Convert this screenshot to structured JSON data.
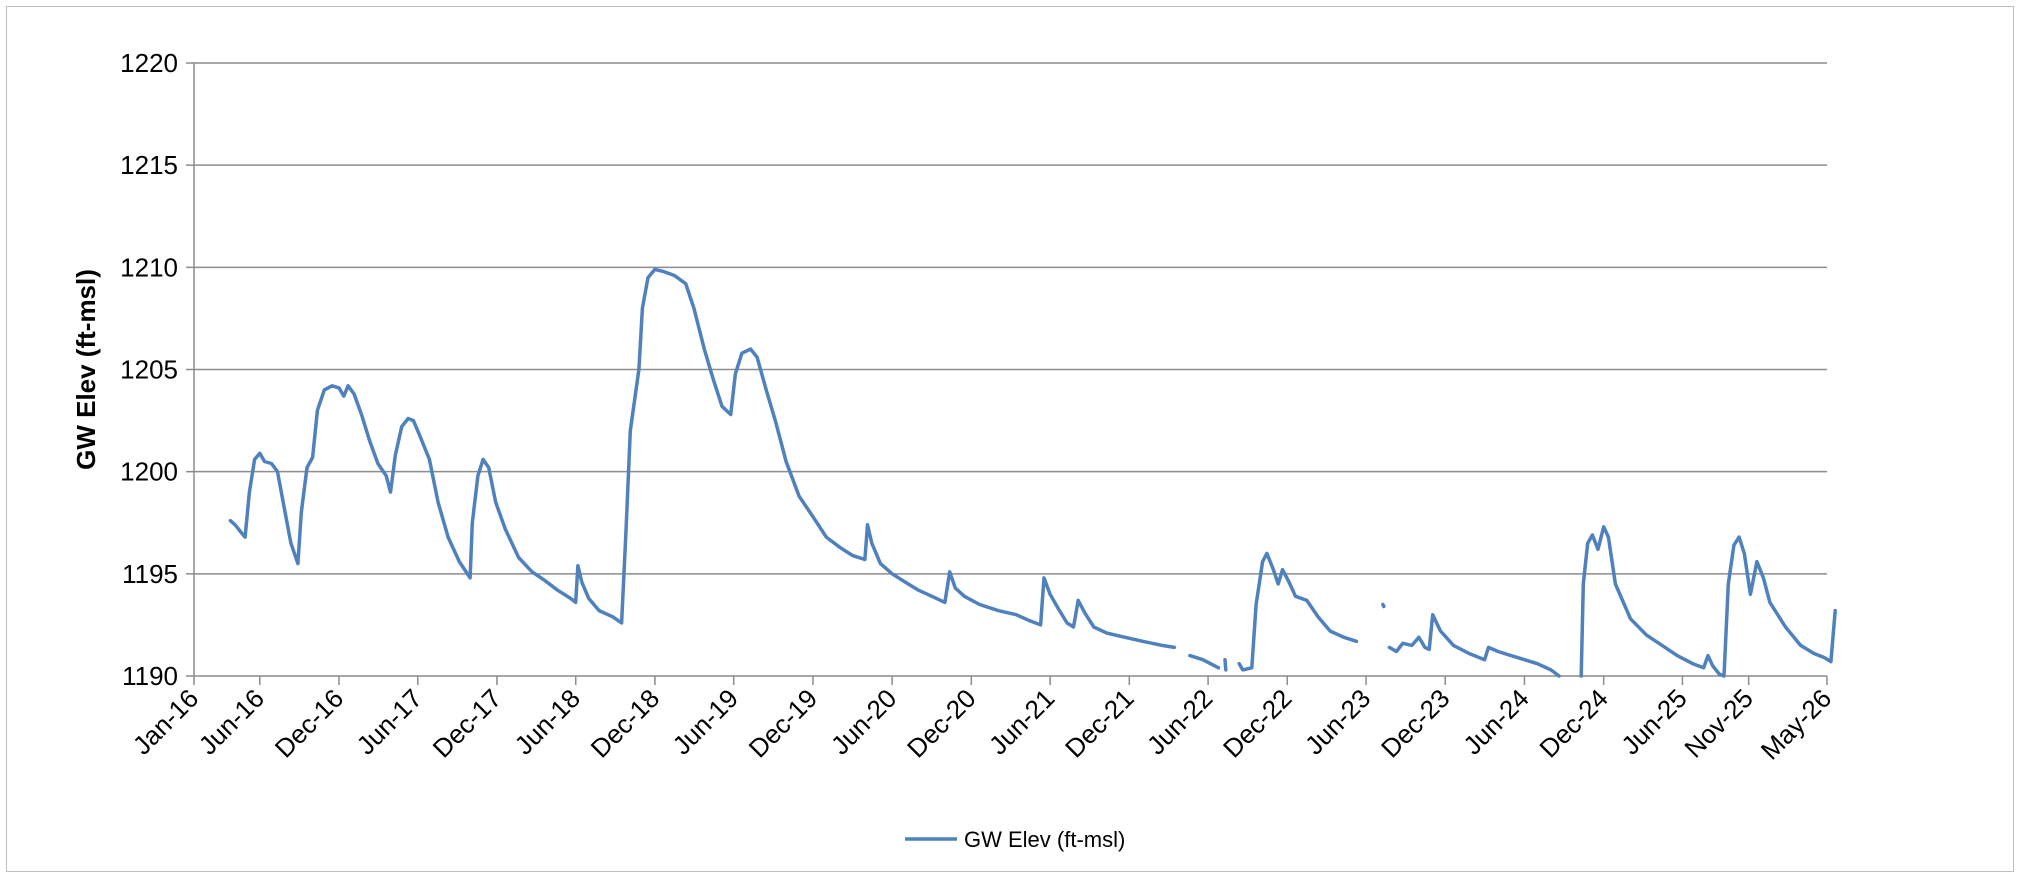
{
  "chart_data": {
    "type": "line",
    "title": "",
    "xlabel": "",
    "ylabel": "GW Elev (ft-msl)",
    "ylim": [
      1190,
      1220
    ],
    "yticks": [
      1190,
      1195,
      1200,
      1205,
      1210,
      1215,
      1220
    ],
    "xlim": [
      "2016-01-01",
      "2026-05-01"
    ],
    "xticks": [
      "2016-01-01",
      "2016-06-01",
      "2016-12-01",
      "2017-06-01",
      "2017-12-01",
      "2018-06-01",
      "2018-12-01",
      "2019-06-01",
      "2019-12-01",
      "2020-06-01",
      "2020-12-01",
      "2021-06-01",
      "2021-12-01",
      "2022-06-01",
      "2022-12-01",
      "2023-06-01",
      "2023-12-01",
      "2024-06-01",
      "2024-12-01",
      "2025-06-01",
      "2025-11-01",
      "2026-05-01"
    ],
    "xtick_labels": [
      "Jan-16",
      "Jun-16",
      "Dec-16",
      "Jun-17",
      "Dec-17",
      "Jun-18",
      "Dec-18",
      "Jun-19",
      "Dec-19",
      "Jun-20",
      "Dec-20",
      "Jun-21",
      "Dec-21",
      "Jun-22",
      "Dec-22",
      "Jun-23",
      "Dec-23",
      "Jun-24",
      "Dec-24",
      "Jun-25",
      "Nov-25",
      "May-26"
    ],
    "grid": true,
    "legend_position": "bottom",
    "color": "#4f81bd",
    "series": [
      {
        "name": "GW Elev (ft-msl)",
        "segments": [
          [
            [
              "2016-03-25",
              1197.6
            ],
            [
              "2016-04-05",
              1197.4
            ],
            [
              "2016-04-20",
              1197.0
            ],
            [
              "2016-04-28",
              1196.8
            ],
            [
              "2016-05-08",
              1199.0
            ],
            [
              "2016-05-20",
              1200.6
            ],
            [
              "2016-06-01",
              1200.9
            ],
            [
              "2016-06-12",
              1200.5
            ],
            [
              "2016-06-28",
              1200.4
            ],
            [
              "2016-07-12",
              1200.0
            ],
            [
              "2016-07-25",
              1198.5
            ],
            [
              "2016-08-12",
              1196.5
            ],
            [
              "2016-08-28",
              1195.5
            ],
            [
              "2016-09-05",
              1198.0
            ],
            [
              "2016-09-18",
              1200.2
            ],
            [
              "2016-10-01",
              1200.7
            ],
            [
              "2016-10-12",
              1203.0
            ],
            [
              "2016-10-28",
              1204.0
            ],
            [
              "2016-11-15",
              1204.2
            ],
            [
              "2016-12-01",
              1204.1
            ],
            [
              "2016-12-12",
              1203.7
            ],
            [
              "2016-12-22",
              1204.2
            ],
            [
              "2017-01-05",
              1203.8
            ],
            [
              "2017-01-22",
              1202.8
            ],
            [
              "2017-02-10",
              1201.5
            ],
            [
              "2017-03-01",
              1200.4
            ],
            [
              "2017-03-20",
              1199.8
            ],
            [
              "2017-03-30",
              1199.0
            ],
            [
              "2017-04-10",
              1200.8
            ],
            [
              "2017-04-25",
              1202.2
            ],
            [
              "2017-05-10",
              1202.6
            ],
            [
              "2017-05-22",
              1202.5
            ],
            [
              "2017-06-05",
              1201.8
            ],
            [
              "2017-06-28",
              1200.6
            ],
            [
              "2017-07-18",
              1198.5
            ],
            [
              "2017-08-10",
              1196.8
            ],
            [
              "2017-09-05",
              1195.6
            ],
            [
              "2017-09-30",
              1194.8
            ],
            [
              "2017-10-05",
              1197.5
            ],
            [
              "2017-10-18",
              1199.8
            ],
            [
              "2017-10-30",
              1200.6
            ],
            [
              "2017-11-12",
              1200.2
            ],
            [
              "2017-11-28",
              1198.5
            ],
            [
              "2017-12-20",
              1197.2
            ],
            [
              "2018-01-20",
              1195.8
            ],
            [
              "2018-02-20",
              1195.1
            ],
            [
              "2018-03-20",
              1194.7
            ],
            [
              "2018-04-20",
              1194.2
            ],
            [
              "2018-05-20",
              1193.8
            ],
            [
              "2018-06-01",
              1193.6
            ],
            [
              "2018-06-06",
              1195.4
            ],
            [
              "2018-06-15",
              1194.6
            ],
            [
              "2018-07-01",
              1193.8
            ],
            [
              "2018-07-25",
              1193.2
            ],
            [
              "2018-08-25",
              1192.9
            ],
            [
              "2018-09-15",
              1192.6
            ],
            [
              "2018-09-25",
              1197.0
            ],
            [
              "2018-10-05",
              1202.0
            ],
            [
              "2018-10-15",
              1203.5
            ],
            [
              "2018-10-25",
              1205.0
            ],
            [
              "2018-11-02",
              1208.0
            ],
            [
              "2018-11-15",
              1209.5
            ],
            [
              "2018-12-01",
              1209.9
            ],
            [
              "2018-12-20",
              1209.8
            ],
            [
              "2019-01-15",
              1209.6
            ],
            [
              "2019-02-10",
              1209.2
            ],
            [
              "2019-03-01",
              1208.0
            ],
            [
              "2019-03-25",
              1206.0
            ],
            [
              "2019-04-15",
              1204.5
            ],
            [
              "2019-05-05",
              1203.2
            ],
            [
              "2019-05-25",
              1202.8
            ],
            [
              "2019-06-05",
              1204.8
            ],
            [
              "2019-06-20",
              1205.8
            ],
            [
              "2019-07-10",
              1206.0
            ],
            [
              "2019-07-25",
              1205.6
            ],
            [
              "2019-08-15",
              1204.0
            ],
            [
              "2019-09-05",
              1202.5
            ],
            [
              "2019-09-30",
              1200.5
            ],
            [
              "2019-10-30",
              1198.8
            ],
            [
              "2019-12-01",
              1197.8
            ],
            [
              "2020-01-01",
              1196.8
            ],
            [
              "2020-02-01",
              1196.3
            ],
            [
              "2020-03-01",
              1195.9
            ],
            [
              "2020-03-30",
              1195.7
            ],
            [
              "2020-04-05",
              1197.4
            ],
            [
              "2020-04-15",
              1196.5
            ],
            [
              "2020-05-05",
              1195.5
            ],
            [
              "2020-06-01",
              1195.0
            ],
            [
              "2020-07-01",
              1194.6
            ],
            [
              "2020-08-01",
              1194.2
            ],
            [
              "2020-09-01",
              1193.9
            ],
            [
              "2020-10-01",
              1193.6
            ],
            [
              "2020-10-12",
              1195.1
            ],
            [
              "2020-10-25",
              1194.3
            ],
            [
              "2020-11-15",
              1193.9
            ],
            [
              "2020-12-20",
              1193.5
            ],
            [
              "2021-02-01",
              1193.2
            ],
            [
              "2021-03-15",
              1193.0
            ],
            [
              "2021-04-15",
              1192.7
            ],
            [
              "2021-05-10",
              1192.5
            ],
            [
              "2021-05-18",
              1194.8
            ],
            [
              "2021-06-01",
              1194.0
            ],
            [
              "2021-06-20",
              1193.3
            ],
            [
              "2021-07-10",
              1192.6
            ],
            [
              "2021-07-25",
              1192.4
            ],
            [
              "2021-08-05",
              1193.7
            ],
            [
              "2021-08-20",
              1193.1
            ],
            [
              "2021-09-10",
              1192.4
            ],
            [
              "2021-10-10",
              1192.1
            ],
            [
              "2021-11-20",
              1191.9
            ],
            [
              "2022-01-01",
              1191.7
            ],
            [
              "2022-02-15",
              1191.5
            ],
            [
              "2022-03-15",
              1191.4
            ]
          ],
          [
            [
              "2022-04-20",
              1191.0
            ],
            [
              "2022-05-20",
              1190.8
            ],
            [
              "2022-06-25",
              1190.4
            ]
          ],
          [
            [
              "2022-07-10",
              1190.8
            ],
            [
              "2022-07-12",
              1190.3
            ]
          ],
          [
            [
              "2022-08-12",
              1190.6
            ],
            [
              "2022-08-20",
              1190.3
            ],
            [
              "2022-09-10",
              1190.4
            ],
            [
              "2022-09-20",
              1193.5
            ],
            [
              "2022-10-05",
              1195.6
            ],
            [
              "2022-10-15",
              1196.0
            ],
            [
              "2022-10-30",
              1195.2
            ],
            [
              "2022-11-10",
              1194.5
            ],
            [
              "2022-11-20",
              1195.2
            ],
            [
              "2022-12-05",
              1194.6
            ],
            [
              "2022-12-20",
              1193.9
            ],
            [
              "2023-01-15",
              1193.7
            ],
            [
              "2023-02-10",
              1192.9
            ],
            [
              "2023-03-10",
              1192.2
            ],
            [
              "2023-04-10",
              1191.9
            ],
            [
              "2023-05-10",
              1191.7
            ]
          ],
          [
            [
              "2023-07-10",
              1193.5
            ],
            [
              "2023-07-12",
              1193.4
            ]
          ],
          [
            [
              "2023-07-25",
              1191.4
            ],
            [
              "2023-08-10",
              1191.2
            ],
            [
              "2023-08-25",
              1191.6
            ],
            [
              "2023-09-15",
              1191.5
            ],
            [
              "2023-10-01",
              1191.9
            ],
            [
              "2023-10-15",
              1191.4
            ],
            [
              "2023-10-25",
              1191.3
            ],
            [
              "2023-11-02",
              1193.0
            ],
            [
              "2023-11-20",
              1192.2
            ],
            [
              "2023-12-20",
              1191.5
            ],
            [
              "2024-01-25",
              1191.1
            ],
            [
              "2024-03-01",
              1190.8
            ],
            [
              "2024-03-10",
              1191.4
            ],
            [
              "2024-04-01",
              1191.2
            ],
            [
              "2024-05-01",
              1191.0
            ],
            [
              "2024-06-01",
              1190.8
            ],
            [
              "2024-07-01",
              1190.6
            ],
            [
              "2024-08-01",
              1190.3
            ],
            [
              "2024-08-20",
              1190.0
            ]
          ],
          [
            [
              "2024-10-10",
              1190.0
            ],
            [
              "2024-10-15",
              1194.5
            ],
            [
              "2024-10-25",
              1196.5
            ],
            [
              "2024-11-05",
              1196.9
            ],
            [
              "2024-11-18",
              1196.2
            ],
            [
              "2024-12-01",
              1197.3
            ],
            [
              "2024-12-12",
              1196.8
            ],
            [
              "2024-12-28",
              1194.5
            ],
            [
              "2025-02-01",
              1192.8
            ],
            [
              "2025-03-10",
              1192.0
            ],
            [
              "2025-04-15",
              1191.5
            ],
            [
              "2025-05-20",
              1191.0
            ],
            [
              "2025-06-25",
              1190.6
            ],
            [
              "2025-07-20",
              1190.4
            ],
            [
              "2025-07-30",
              1191.0
            ],
            [
              "2025-08-10",
              1190.5
            ],
            [
              "2025-08-25",
              1190.1
            ],
            [
              "2025-09-05",
              1190.0
            ],
            [
              "2025-09-15",
              1194.5
            ],
            [
              "2025-09-28",
              1196.4
            ],
            [
              "2025-10-10",
              1196.8
            ],
            [
              "2025-10-22",
              1196.0
            ],
            [
              "2025-11-05",
              1194.0
            ],
            [
              "2025-11-20",
              1195.6
            ],
            [
              "2025-12-05",
              1194.8
            ],
            [
              "2025-12-20",
              1193.6
            ],
            [
              "2026-01-25",
              1192.4
            ],
            [
              "2026-03-01",
              1191.5
            ],
            [
              "2026-04-01",
              1191.1
            ],
            [
              "2026-04-25",
              1190.9
            ],
            [
              "2026-05-10",
              1190.7
            ],
            [
              "2026-05-20",
              1193.2
            ]
          ]
        ]
      }
    ]
  }
}
